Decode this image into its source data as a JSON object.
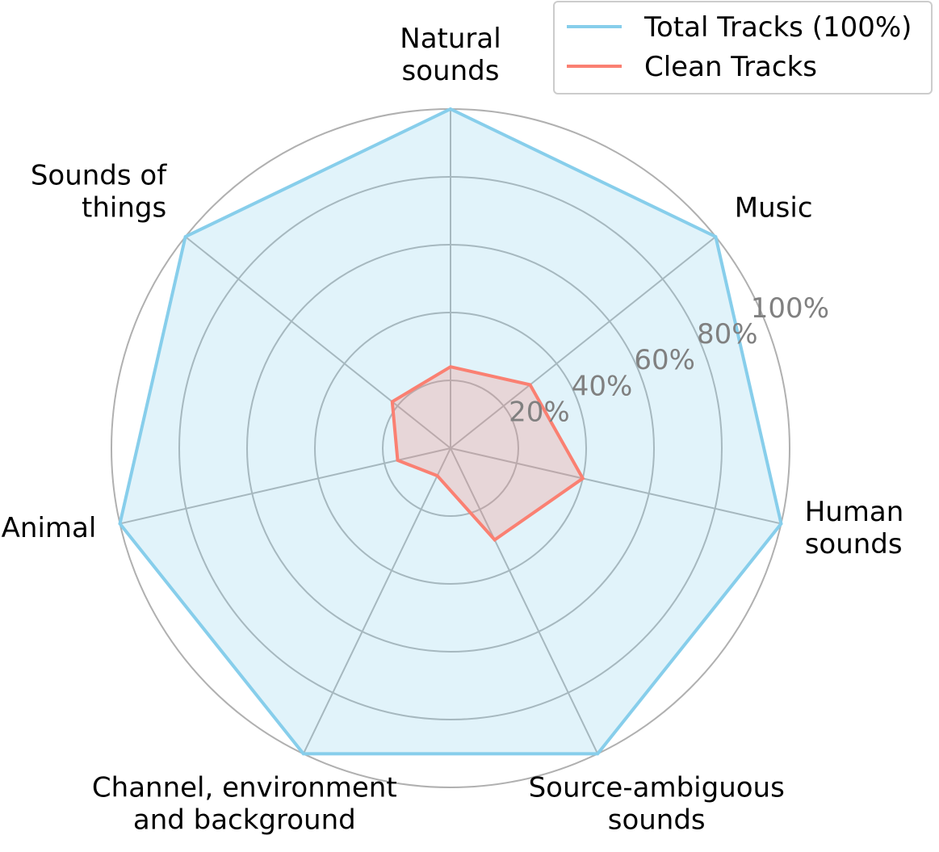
{
  "chart_data": {
    "type": "radar",
    "categories": [
      [
        "Natural",
        "sounds"
      ],
      [
        "Music"
      ],
      [
        "Human",
        "sounds"
      ],
      [
        "Source-ambiguous",
        "sounds"
      ],
      [
        "Channel, environment",
        "and background"
      ],
      [
        "Animal"
      ],
      [
        "Sounds of",
        "things"
      ]
    ],
    "rlim": [
      0,
      100
    ],
    "rticks": [
      20,
      40,
      60,
      80,
      100
    ],
    "rtick_labels": [
      "20%",
      "40%",
      "60%",
      "80%",
      "100%"
    ],
    "grid": true,
    "legend_position": "top-right",
    "series": [
      {
        "name": "Total Tracks (100%)",
        "color": "#87CEEB",
        "values": [
          100,
          100,
          100,
          100,
          100,
          100,
          100
        ]
      },
      {
        "name": "Clean Tracks",
        "color": "#FA8072",
        "values": [
          24,
          30,
          40,
          30,
          9,
          16,
          22
        ]
      }
    ]
  }
}
